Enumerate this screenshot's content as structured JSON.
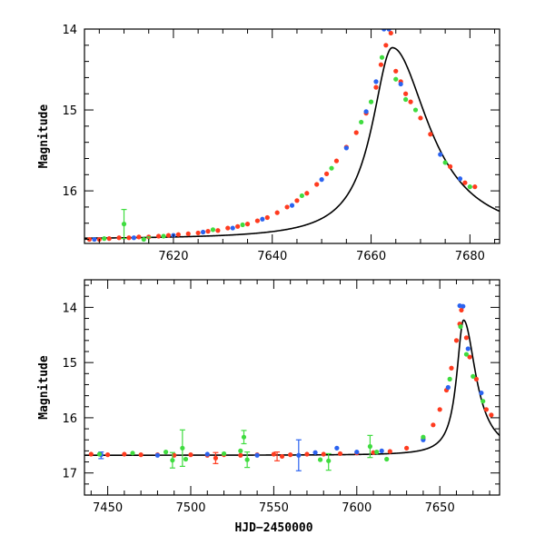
{
  "chart_data": [
    {
      "type": "scatter",
      "title": "",
      "ylabel": "Magnitude",
      "xlabel": "",
      "xlim": [
        7602,
        7686
      ],
      "ylim": [
        16.65,
        14.0
      ],
      "y_inverted": true,
      "xticks": [
        7620,
        7640,
        7660,
        7680
      ],
      "yticks": [
        14,
        15,
        16
      ],
      "grid": false,
      "series": [
        {
          "color": "#ff3b1f",
          "points": [
            [
              7603,
              16.6
            ],
            [
              7605,
              16.6
            ],
            [
              7607,
              16.59
            ],
            [
              7609,
              16.58
            ],
            [
              7611,
              16.58
            ],
            [
              7613,
              16.57
            ],
            [
              7615,
              16.57
            ],
            [
              7617,
              16.56
            ],
            [
              7619,
              16.55
            ],
            [
              7621,
              16.54
            ],
            [
              7623,
              16.53
            ],
            [
              7625,
              16.52
            ],
            [
              7627,
              16.5
            ],
            [
              7629,
              16.49
            ],
            [
              7631,
              16.46
            ],
            [
              7633,
              16.44
            ],
            [
              7635,
              16.41
            ],
            [
              7637,
              16.37
            ],
            [
              7639,
              16.33
            ],
            [
              7641,
              16.27
            ],
            [
              7643,
              16.2
            ],
            [
              7645,
              16.12
            ],
            [
              7647,
              16.03
            ],
            [
              7649,
              15.92
            ],
            [
              7651,
              15.79
            ],
            [
              7653,
              15.63
            ],
            [
              7655,
              15.46
            ],
            [
              7657,
              15.28
            ],
            [
              7659,
              15.04
            ],
            [
              7661,
              14.72
            ],
            [
              7662,
              14.44
            ],
            [
              7663,
              14.2
            ],
            [
              7664,
              14.05
            ],
            [
              7665,
              14.52
            ],
            [
              7666,
              14.65
            ],
            [
              7667,
              14.8
            ],
            [
              7668,
              14.9
            ],
            [
              7670,
              15.1
            ],
            [
              7672,
              15.3
            ],
            [
              7676,
              15.7
            ],
            [
              7679,
              15.9
            ],
            [
              7681,
              15.95
            ]
          ]
        },
        {
          "color": "#2b63f0",
          "points": [
            [
              7604,
              16.6
            ],
            [
              7612,
              16.58
            ],
            [
              7620,
              16.55
            ],
            [
              7626,
              16.51
            ],
            [
              7632,
              16.46
            ],
            [
              7638,
              16.35
            ],
            [
              7644,
              16.18
            ],
            [
              7650,
              15.86
            ],
            [
              7655,
              15.47
            ],
            [
              7659,
              15.02
            ],
            [
              7661,
              14.65
            ],
            [
              7662.6,
              14.0
            ],
            [
              7663.6,
              14.0
            ],
            [
              7666,
              14.68
            ],
            [
              7674,
              15.55
            ],
            [
              7678,
              15.85
            ]
          ]
        },
        {
          "color": "#3fdc3f",
          "points": [
            [
              7606,
              16.59
            ],
            [
              7610,
              16.41
            ],
            [
              7614,
              16.6
            ],
            [
              7618,
              16.56
            ],
            [
              7628,
              16.48
            ],
            [
              7634,
              16.42
            ],
            [
              7646,
              16.06
            ],
            [
              7652,
              15.72
            ],
            [
              7658,
              15.15
            ],
            [
              7660,
              14.9
            ],
            [
              7662.2,
              14.35
            ],
            [
              7665,
              14.62
            ],
            [
              7667,
              14.87
            ],
            [
              7669,
              15.0
            ],
            [
              7675,
              15.65
            ],
            [
              7680,
              15.95
            ]
          ],
          "errorbars": [
            [
              7610,
              16.41,
              0.18
            ],
            [
              7615,
              16.63,
              0.06
            ]
          ]
        }
      ],
      "model_curve": {
        "baseline": 16.6,
        "t0": 7664.3,
        "peak": 14.23,
        "tau_rise": 5.0,
        "tau_decay": 9.0
      }
    },
    {
      "type": "scatter",
      "title": "",
      "ylabel": "Magnitude",
      "xlabel": "HJD−2450000",
      "xlim": [
        7436,
        7686
      ],
      "ylim": [
        17.4,
        13.5
      ],
      "y_inverted": true,
      "xticks": [
        7450,
        7500,
        7550,
        7600,
        7650
      ],
      "yticks": [
        14,
        15,
        16,
        17
      ],
      "grid": false,
      "series": [
        {
          "color": "#ff3b1f",
          "points": [
            [
              7440,
              16.66
            ],
            [
              7450,
              16.67
            ],
            [
              7460,
              16.66
            ],
            [
              7470,
              16.67
            ],
            [
              7480,
              16.67
            ],
            [
              7490,
              16.68
            ],
            [
              7500,
              16.67
            ],
            [
              7510,
              16.68
            ],
            [
              7515,
              16.73
            ],
            [
              7520,
              16.67
            ],
            [
              7530,
              16.68
            ],
            [
              7540,
              16.67
            ],
            [
              7550,
              16.66
            ],
            [
              7555,
              16.7
            ],
            [
              7560,
              16.67
            ],
            [
              7570,
              16.66
            ],
            [
              7580,
              16.66
            ],
            [
              7590,
              16.65
            ],
            [
              7600,
              16.64
            ],
            [
              7610,
              16.63
            ],
            [
              7620,
              16.61
            ],
            [
              7630,
              16.55
            ],
            [
              7640,
              16.38
            ],
            [
              7646,
              16.13
            ],
            [
              7650,
              15.85
            ],
            [
              7654,
              15.5
            ],
            [
              7657,
              15.1
            ],
            [
              7660,
              14.6
            ],
            [
              7662,
              14.3
            ],
            [
              7663,
              14.05
            ],
            [
              7666,
              14.55
            ],
            [
              7668,
              14.9
            ],
            [
              7672,
              15.3
            ],
            [
              7678,
              15.85
            ],
            [
              7681,
              15.95
            ]
          ],
          "errorbars": [
            [
              7515,
              16.73,
              0.1
            ],
            [
              7552,
              16.7,
              0.08
            ]
          ]
        },
        {
          "color": "#2b63f0",
          "points": [
            [
              7446,
              16.67
            ],
            [
              7480,
              16.68
            ],
            [
              7510,
              16.66
            ],
            [
              7540,
              16.68
            ],
            [
              7565,
              16.68
            ],
            [
              7575,
              16.63
            ],
            [
              7588,
              16.55
            ],
            [
              7600,
              16.62
            ],
            [
              7615,
              16.6
            ],
            [
              7640,
              16.4
            ],
            [
              7655,
              15.45
            ],
            [
              7662,
              13.97
            ],
            [
              7664,
              13.98
            ],
            [
              7667,
              14.75
            ],
            [
              7675,
              15.55
            ]
          ],
          "errorbars": [
            [
              7446,
              16.68,
              0.06
            ],
            [
              7565,
              16.68,
              0.28
            ]
          ]
        },
        {
          "color": "#3fdc3f",
          "points": [
            [
              7445,
              16.66
            ],
            [
              7465,
              16.64
            ],
            [
              7485,
              16.62
            ],
            [
              7489,
              16.77
            ],
            [
              7495,
              16.55
            ],
            [
              7497,
              16.75
            ],
            [
              7520,
              16.65
            ],
            [
              7530,
              16.6
            ],
            [
              7532,
              16.35
            ],
            [
              7534,
              16.76
            ],
            [
              7578,
              16.76
            ],
            [
              7583,
              16.78
            ],
            [
              7608,
              16.52
            ],
            [
              7612,
              16.62
            ],
            [
              7618,
              16.75
            ],
            [
              7640,
              16.35
            ],
            [
              7656,
              15.3
            ],
            [
              7662.5,
              14.35
            ],
            [
              7666,
              14.85
            ],
            [
              7670,
              15.25
            ],
            [
              7676,
              15.7
            ]
          ],
          "errorbars": [
            [
              7489,
              16.77,
              0.14
            ],
            [
              7495,
              16.55,
              0.33
            ],
            [
              7532,
              16.35,
              0.12
            ],
            [
              7534,
              16.76,
              0.14
            ],
            [
              7583,
              16.8,
              0.15
            ],
            [
              7608,
              16.52,
              0.2
            ]
          ]
        }
      ],
      "model_curve": {
        "baseline": 16.68,
        "t0": 7664.3,
        "peak": 14.23,
        "tau_rise": 5.0,
        "tau_decay": 9.0
      }
    }
  ]
}
